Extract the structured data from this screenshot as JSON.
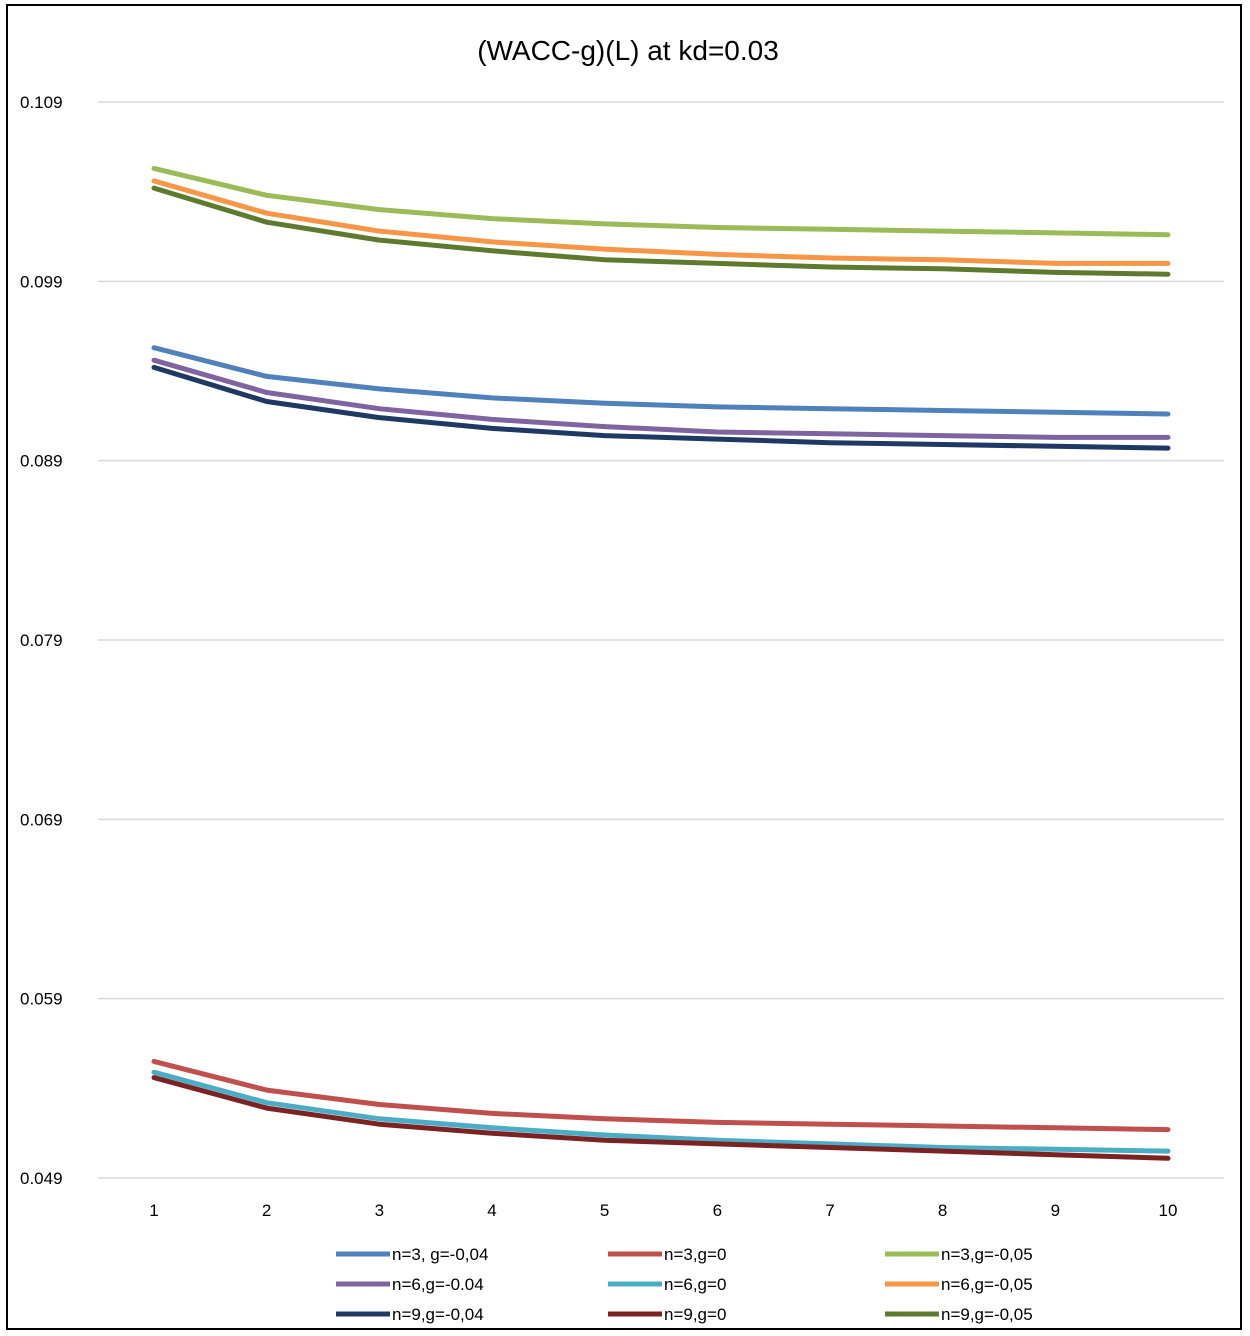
{
  "chart_data": {
    "type": "line",
    "title": "(WACC-g)(L) at kd=0.03",
    "xlabel": "",
    "ylabel": "",
    "x": [
      1,
      2,
      3,
      4,
      5,
      6,
      7,
      8,
      9,
      10
    ],
    "x_tick_labels": [
      "1",
      "2",
      "3",
      "4",
      "5",
      "6",
      "7",
      "8",
      "9",
      "10"
    ],
    "y_ticks": [
      0.049,
      0.059,
      0.069,
      0.079,
      0.089,
      0.099,
      0.109
    ],
    "y_tick_labels": [
      "0.049",
      "0.059",
      "0.069",
      "0.079",
      "0.089",
      "0.099",
      "0.109"
    ],
    "ylim": [
      0.049,
      0.109
    ],
    "grid": true,
    "legend_position": "bottom",
    "series": [
      {
        "name": "n=3, g=-0,04",
        "color": "#4f81bd",
        "values": [
          0.0953,
          0.0937,
          0.093,
          0.0925,
          0.0922,
          0.092,
          0.0919,
          0.0918,
          0.0917,
          0.0916
        ]
      },
      {
        "name": "n=3,g=0",
        "color": "#c0504d",
        "values": [
          0.0555,
          0.0539,
          0.0531,
          0.0526,
          0.0523,
          0.0521,
          0.052,
          0.0519,
          0.0518,
          0.0517
        ]
      },
      {
        "name": "n=3,g=-0,05",
        "color": "#9bbb59",
        "values": [
          0.1053,
          0.1038,
          0.103,
          0.1025,
          0.1022,
          0.102,
          0.1019,
          0.1018,
          0.1017,
          0.1016
        ]
      },
      {
        "name": "n=6,g=-0.04",
        "color": "#8064a2",
        "values": [
          0.0946,
          0.0928,
          0.0919,
          0.0913,
          0.0909,
          0.0906,
          0.0905,
          0.0904,
          0.0903,
          0.0903
        ]
      },
      {
        "name": "n=6,g=0",
        "color": "#4bacc6",
        "values": [
          0.0549,
          0.0532,
          0.0523,
          0.0518,
          0.0514,
          0.0511,
          0.0509,
          0.0507,
          0.0506,
          0.0505
        ]
      },
      {
        "name": "n=6,g=-0,05",
        "color": "#f79646",
        "values": [
          0.1046,
          0.1028,
          0.1018,
          0.1012,
          0.1008,
          0.1005,
          0.1003,
          0.1002,
          0.1,
          0.1
        ]
      },
      {
        "name": "n=9,g=-0,04",
        "color": "#1f3864",
        "values": [
          0.0942,
          0.0923,
          0.0914,
          0.0908,
          0.0904,
          0.0902,
          0.09,
          0.0899,
          0.0898,
          0.0897
        ]
      },
      {
        "name": "n=9,g=0",
        "color": "#7b2222",
        "values": [
          0.0546,
          0.0529,
          0.052,
          0.0515,
          0.0511,
          0.0509,
          0.0507,
          0.0505,
          0.0503,
          0.0501
        ]
      },
      {
        "name": "n=9,g=-0,05",
        "color": "#5e7a2e",
        "values": [
          0.1042,
          0.1023,
          0.1013,
          0.1007,
          0.1002,
          0.1,
          0.0998,
          0.0997,
          0.0995,
          0.0994
        ]
      }
    ]
  }
}
